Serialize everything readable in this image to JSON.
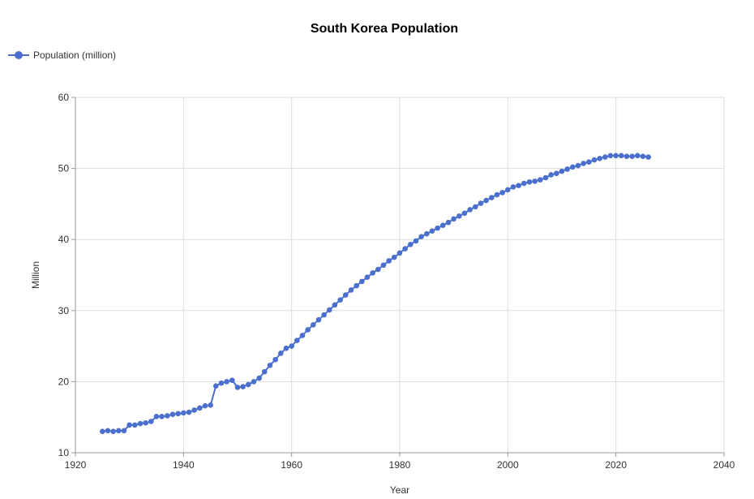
{
  "chart_data": {
    "type": "line",
    "title": "South Korea Population",
    "xlabel": "Year",
    "ylabel": "Million",
    "xlim": [
      1920,
      2040
    ],
    "ylim": [
      10,
      60
    ],
    "xticks": [
      "1920",
      "1940",
      "1960",
      "1980",
      "2000",
      "2020",
      "2040"
    ],
    "yticks": [
      "10",
      "20",
      "30",
      "40",
      "50",
      "60"
    ],
    "grid": true,
    "legend": {
      "position": "top-left",
      "entries": [
        "Population (million)"
      ]
    },
    "colors": {
      "series": "#4a6fcc",
      "grid": "#dddddd",
      "axis": "#999999"
    },
    "series": [
      {
        "name": "Population (million)",
        "x": [
          1925,
          1926,
          1927,
          1928,
          1929,
          1930,
          1931,
          1932,
          1933,
          1934,
          1935,
          1936,
          1937,
          1938,
          1939,
          1940,
          1941,
          1942,
          1943,
          1944,
          1945,
          1946,
          1947,
          1948,
          1949,
          1950,
          1951,
          1952,
          1953,
          1954,
          1955,
          1956,
          1957,
          1958,
          1959,
          1960,
          1961,
          1962,
          1963,
          1964,
          1965,
          1966,
          1967,
          1968,
          1969,
          1970,
          1971,
          1972,
          1973,
          1974,
          1975,
          1976,
          1977,
          1978,
          1979,
          1980,
          1981,
          1982,
          1983,
          1984,
          1985,
          1986,
          1987,
          1988,
          1989,
          1990,
          1991,
          1992,
          1993,
          1994,
          1995,
          1996,
          1997,
          1998,
          1999,
          2000,
          2001,
          2002,
          2003,
          2004,
          2005,
          2006,
          2007,
          2008,
          2009,
          2010,
          2011,
          2012,
          2013,
          2014,
          2015,
          2016,
          2017,
          2018,
          2019,
          2020,
          2021,
          2022,
          2023,
          2024,
          2025,
          2026
        ],
        "values": [
          13.0,
          13.1,
          13.0,
          13.1,
          13.1,
          13.9,
          13.9,
          14.1,
          14.2,
          14.4,
          15.1,
          15.1,
          15.2,
          15.4,
          15.5,
          15.6,
          15.7,
          16.0,
          16.3,
          16.6,
          16.7,
          19.4,
          19.8,
          20.0,
          20.2,
          19.2,
          19.3,
          19.6,
          20.0,
          20.5,
          21.4,
          22.3,
          23.1,
          24.0,
          24.7,
          25.0,
          25.8,
          26.5,
          27.3,
          28.0,
          28.7,
          29.4,
          30.1,
          30.8,
          31.5,
          32.2,
          32.9,
          33.5,
          34.1,
          34.7,
          35.3,
          35.8,
          36.4,
          37.0,
          37.5,
          38.1,
          38.7,
          39.3,
          39.8,
          40.4,
          40.8,
          41.2,
          41.6,
          42.0,
          42.4,
          42.9,
          43.3,
          43.7,
          44.2,
          44.6,
          45.1,
          45.5,
          45.9,
          46.3,
          46.6,
          47.0,
          47.4,
          47.6,
          47.9,
          48.1,
          48.2,
          48.4,
          48.7,
          49.1,
          49.3,
          49.6,
          49.9,
          50.2,
          50.4,
          50.7,
          50.9,
          51.2,
          51.4,
          51.6,
          51.8,
          51.8,
          51.8,
          51.7,
          51.7,
          51.8,
          51.7,
          51.6
        ]
      }
    ]
  }
}
